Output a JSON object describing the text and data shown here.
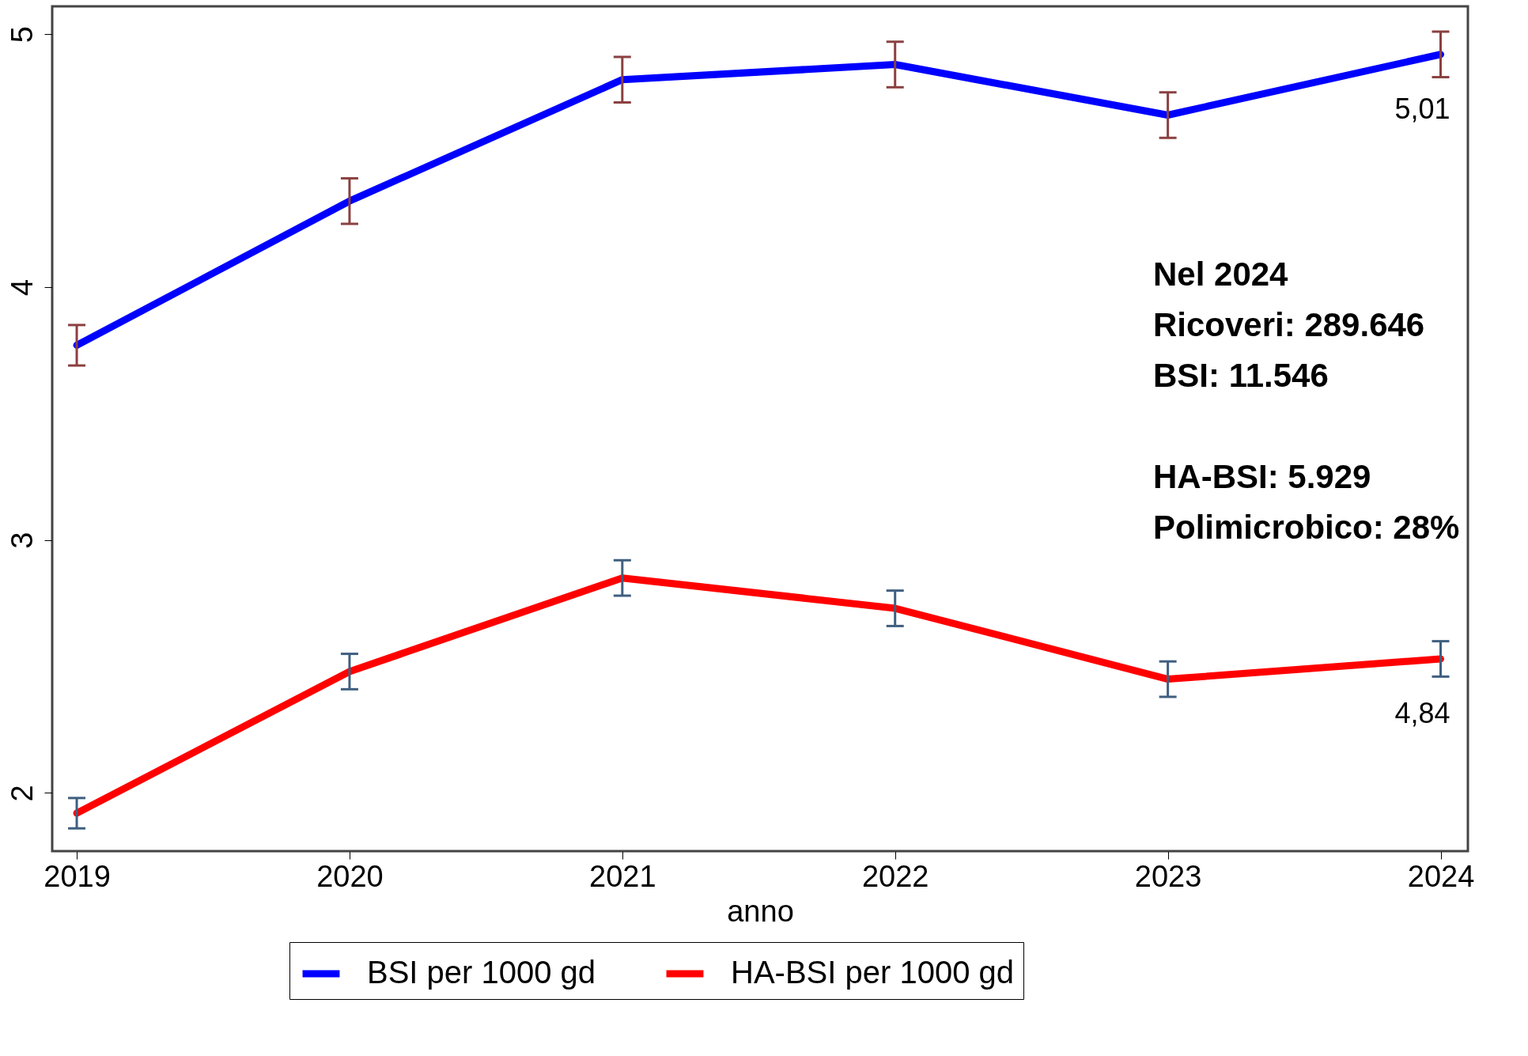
{
  "chart_data": {
    "type": "line",
    "xlabel": "anno",
    "x": [
      2019,
      2020,
      2021,
      2022,
      2023,
      2024
    ],
    "xlim": [
      2018.91,
      2024.1
    ],
    "xticks": [
      2019,
      2020,
      2021,
      2022,
      2023,
      2024
    ],
    "ylim": [
      1.77,
      5.11
    ],
    "yticks": [
      2,
      3,
      4,
      5
    ],
    "series": [
      {
        "name": "BSI per 1000 gd",
        "color": "#0000ff",
        "values": [
          3.77,
          4.34,
          4.82,
          4.88,
          4.68,
          4.92
        ],
        "errors": [
          0.08,
          0.09,
          0.09,
          0.09,
          0.09,
          0.09
        ]
      },
      {
        "name": "HA-BSI per 1000 gd",
        "color": "#ff0000",
        "values": [
          1.92,
          2.48,
          2.85,
          2.73,
          2.45,
          2.53
        ],
        "errors": [
          0.06,
          0.07,
          0.07,
          0.07,
          0.07,
          0.07
        ]
      }
    ],
    "annotations": [
      "5,01",
      "4,84",
      "Nel 2024",
      "Ricoveri: 289.646",
      "BSI: 11.546",
      "HA-BSI: 5.929",
      "Polimicrobico: 28%"
    ],
    "legend": "bottom",
    "grid": false,
    "marker": "none",
    "line_style": "solid"
  }
}
